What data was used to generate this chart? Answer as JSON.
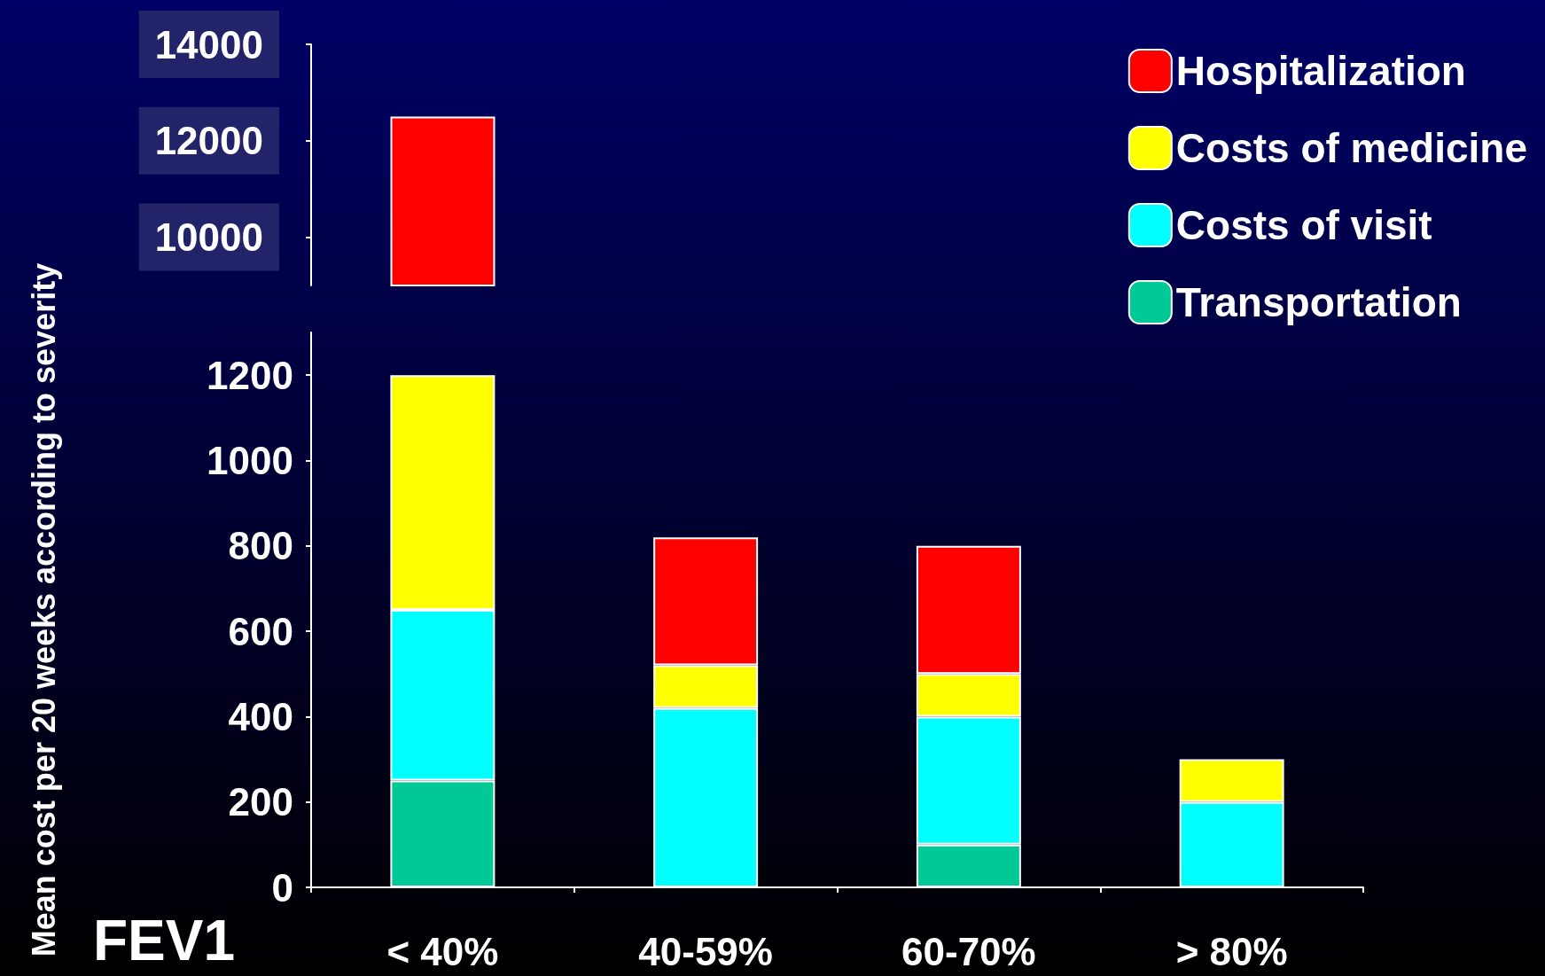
{
  "chart_data": [
    {
      "type": "bar",
      "categories": [
        null
      ],
      "ylim": [
        9000,
        14000
      ],
      "yticks": [
        10000,
        12000,
        14000
      ],
      "tick_labels": "y",
      "series": [
        {
          "color": "#ff0000",
          "values": [
            12500
          ]
        }
      ]
    },
    {
      "type": "bar",
      "stacked": true,
      "legend": "top right",
      "xlabel": "FEV1",
      "ylabel": "Mean cost per 20 weeks according to severity",
      "categories": [
        "< 40%",
        "40-59%",
        "60-70%",
        "> 80%"
      ],
      "ylim": [
        0,
        1300
      ],
      "yticks": [
        0,
        200,
        400,
        600,
        800,
        1000,
        1200
      ],
      "series": [
        {
          "name": "Transportation",
          "color": "#00c896",
          "values": [
            250,
            null,
            100,
            null
          ]
        },
        {
          "name": "Costs of visit",
          "color": "#00ffff",
          "values": [
            400,
            420,
            300,
            200
          ]
        },
        {
          "name": "Costs of medicine",
          "color": "#ffff00",
          "values": [
            550,
            100,
            100,
            100
          ]
        },
        {
          "name": "Hospitalization",
          "color": "#ff0000",
          "values": [
            null,
            300,
            300,
            null
          ]
        }
      ]
    }
  ]
}
